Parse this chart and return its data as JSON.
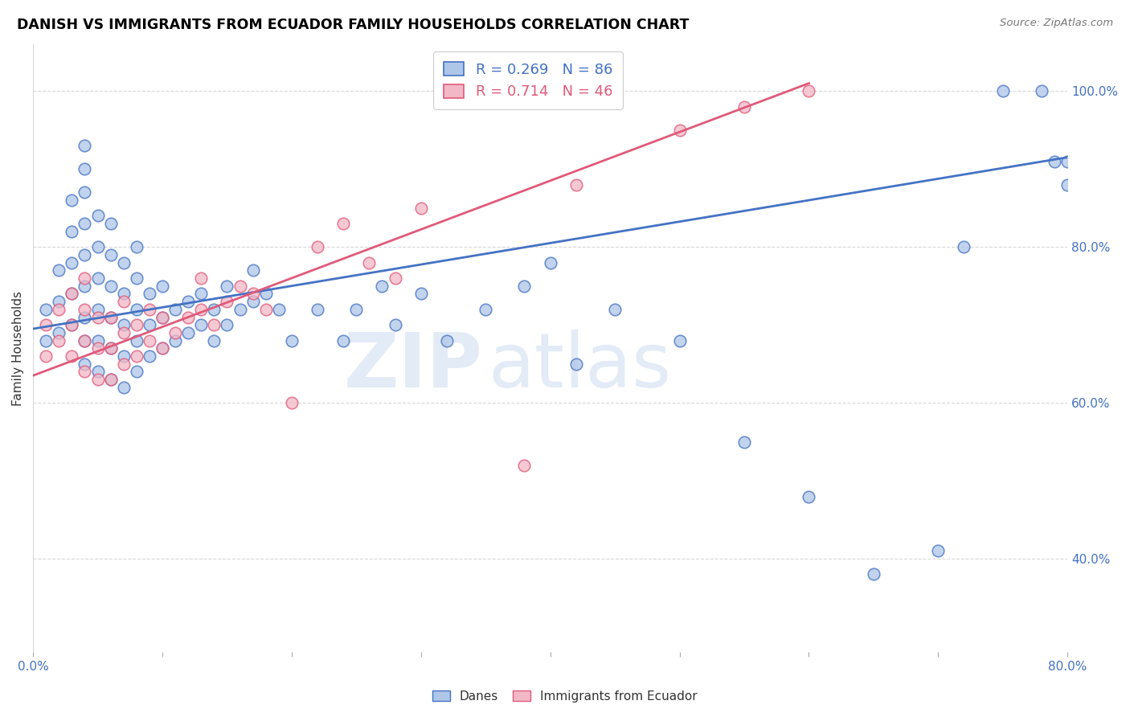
{
  "title": "DANISH VS IMMIGRANTS FROM ECUADOR FAMILY HOUSEHOLDS CORRELATION CHART",
  "source": "Source: ZipAtlas.com",
  "ylabel": "Family Households",
  "xlim": [
    0.0,
    0.8
  ],
  "ylim": [
    0.28,
    1.06
  ],
  "yticks": [
    0.4,
    0.6,
    0.8,
    1.0
  ],
  "ytick_labels": [
    "40.0%",
    "60.0%",
    "80.0%",
    "100.0%"
  ],
  "danes_color": "#aec6e8",
  "ecuador_color": "#f2b8c6",
  "danes_line_color": "#4472c4",
  "ecuador_line_color": "#e05a7a",
  "danes_R": 0.269,
  "danes_N": 86,
  "ecuador_R": 0.714,
  "ecuador_N": 46,
  "danes_line_x0": 0.0,
  "danes_line_y0": 0.695,
  "danes_line_x1": 0.8,
  "danes_line_y1": 0.915,
  "ecuador_line_x0": 0.0,
  "ecuador_line_y0": 0.635,
  "ecuador_line_x1": 0.6,
  "ecuador_line_y1": 1.01,
  "danes_x": [
    0.01,
    0.01,
    0.02,
    0.02,
    0.02,
    0.03,
    0.03,
    0.03,
    0.03,
    0.03,
    0.04,
    0.04,
    0.04,
    0.04,
    0.04,
    0.04,
    0.04,
    0.04,
    0.04,
    0.05,
    0.05,
    0.05,
    0.05,
    0.05,
    0.05,
    0.06,
    0.06,
    0.06,
    0.06,
    0.06,
    0.06,
    0.07,
    0.07,
    0.07,
    0.07,
    0.07,
    0.08,
    0.08,
    0.08,
    0.08,
    0.08,
    0.09,
    0.09,
    0.09,
    0.1,
    0.1,
    0.1,
    0.11,
    0.11,
    0.12,
    0.12,
    0.13,
    0.13,
    0.14,
    0.14,
    0.15,
    0.15,
    0.16,
    0.17,
    0.17,
    0.18,
    0.19,
    0.2,
    0.22,
    0.24,
    0.25,
    0.27,
    0.28,
    0.3,
    0.32,
    0.35,
    0.38,
    0.4,
    0.42,
    0.45,
    0.5,
    0.55,
    0.6,
    0.65,
    0.7,
    0.72,
    0.75,
    0.78,
    0.79,
    0.8,
    0.8
  ],
  "danes_y": [
    0.68,
    0.72,
    0.69,
    0.73,
    0.77,
    0.7,
    0.74,
    0.78,
    0.82,
    0.86,
    0.65,
    0.68,
    0.71,
    0.75,
    0.79,
    0.83,
    0.87,
    0.9,
    0.93,
    0.64,
    0.68,
    0.72,
    0.76,
    0.8,
    0.84,
    0.63,
    0.67,
    0.71,
    0.75,
    0.79,
    0.83,
    0.62,
    0.66,
    0.7,
    0.74,
    0.78,
    0.64,
    0.68,
    0.72,
    0.76,
    0.8,
    0.66,
    0.7,
    0.74,
    0.67,
    0.71,
    0.75,
    0.68,
    0.72,
    0.69,
    0.73,
    0.7,
    0.74,
    0.68,
    0.72,
    0.7,
    0.75,
    0.72,
    0.73,
    0.77,
    0.74,
    0.72,
    0.68,
    0.72,
    0.68,
    0.72,
    0.75,
    0.7,
    0.74,
    0.68,
    0.72,
    0.75,
    0.78,
    0.65,
    0.72,
    0.68,
    0.55,
    0.48,
    0.38,
    0.41,
    0.8,
    1.0,
    1.0,
    0.91,
    0.88,
    0.91
  ],
  "ecuador_x": [
    0.01,
    0.01,
    0.02,
    0.02,
    0.03,
    0.03,
    0.03,
    0.04,
    0.04,
    0.04,
    0.04,
    0.05,
    0.05,
    0.05,
    0.06,
    0.06,
    0.06,
    0.07,
    0.07,
    0.07,
    0.08,
    0.08,
    0.09,
    0.09,
    0.1,
    0.1,
    0.11,
    0.12,
    0.13,
    0.13,
    0.14,
    0.15,
    0.16,
    0.17,
    0.18,
    0.2,
    0.22,
    0.24,
    0.26,
    0.28,
    0.3,
    0.38,
    0.42,
    0.5,
    0.55,
    0.6
  ],
  "ecuador_y": [
    0.7,
    0.66,
    0.68,
    0.72,
    0.66,
    0.7,
    0.74,
    0.64,
    0.68,
    0.72,
    0.76,
    0.63,
    0.67,
    0.71,
    0.63,
    0.67,
    0.71,
    0.65,
    0.69,
    0.73,
    0.66,
    0.7,
    0.68,
    0.72,
    0.67,
    0.71,
    0.69,
    0.71,
    0.72,
    0.76,
    0.7,
    0.73,
    0.75,
    0.74,
    0.72,
    0.6,
    0.8,
    0.83,
    0.78,
    0.76,
    0.85,
    0.52,
    0.88,
    0.95,
    0.98,
    1.0
  ],
  "watermark_zip": "ZIP",
  "watermark_atlas": "atlas",
  "background_color": "#ffffff",
  "grid_color": "#d8d8d8"
}
